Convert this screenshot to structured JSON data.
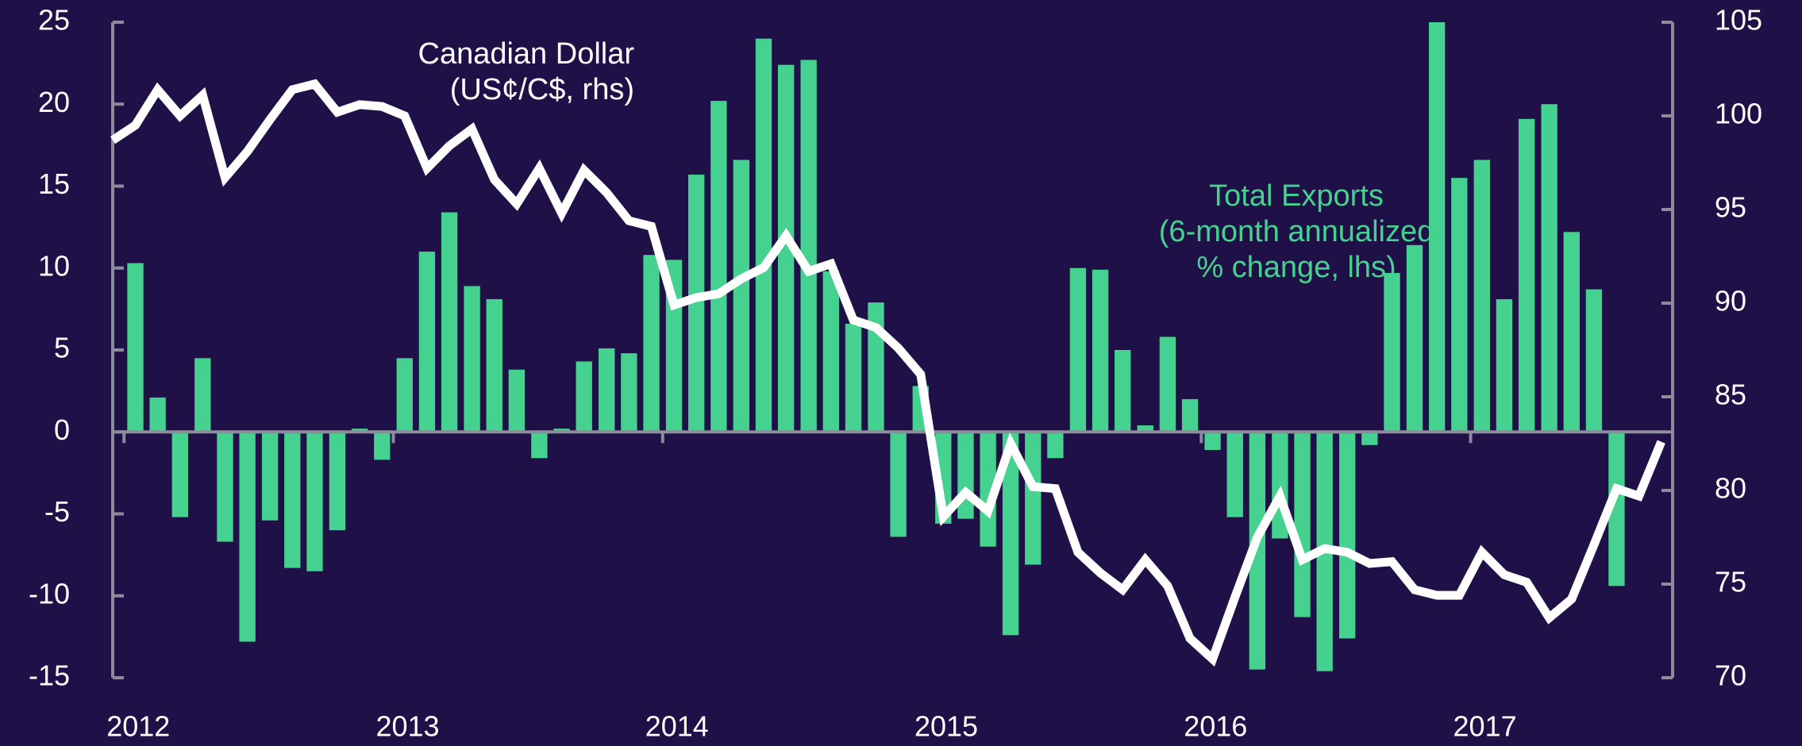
{
  "chart_data": {
    "type": "bar-line",
    "annotations": [
      [
        "Canadian Dollar",
        "(US¢/C$, rhs)"
      ],
      [
        "Total Exports",
        "(6-month annualized",
        "% change, lhs)"
      ]
    ],
    "x": [
      2011.958,
      2012.042,
      2012.125,
      2012.208,
      2012.292,
      2012.375,
      2012.458,
      2012.542,
      2012.625,
      2012.708,
      2012.792,
      2012.875,
      2012.958,
      2013.042,
      2013.125,
      2013.208,
      2013.292,
      2013.375,
      2013.458,
      2013.542,
      2013.625,
      2013.708,
      2013.792,
      2013.875,
      2013.958,
      2014.042,
      2014.125,
      2014.208,
      2014.292,
      2014.375,
      2014.458,
      2014.542,
      2014.625,
      2014.708,
      2014.792,
      2014.875,
      2014.958,
      2015.042,
      2015.125,
      2015.208,
      2015.292,
      2015.375,
      2015.458,
      2015.542,
      2015.625,
      2015.708,
      2015.792,
      2015.875,
      2015.958,
      2016.042,
      2016.125,
      2016.208,
      2016.292,
      2016.375,
      2016.458,
      2016.542,
      2016.625,
      2016.708,
      2016.792,
      2016.875,
      2016.958,
      2017.042,
      2017.125,
      2017.208,
      2017.292,
      2017.375,
      2017.458,
      2017.542,
      2017.625,
      2017.708
    ],
    "series": [
      {
        "name": "Total Exports",
        "type": "bar",
        "color": "#45d18f",
        "axis": "y",
        "values": [
          null,
          10.3,
          2.1,
          -5.2,
          4.5,
          -6.7,
          -12.8,
          -5.4,
          -8.3,
          -8.5,
          -6.0,
          0.2,
          -1.7,
          4.5,
          11.0,
          13.4,
          8.9,
          8.1,
          3.8,
          -1.6,
          0.2,
          4.3,
          5.1,
          4.8,
          10.8,
          10.5,
          15.7,
          20.2,
          16.6,
          24.0,
          22.4,
          22.7,
          9.8,
          6.6,
          7.9,
          -6.4,
          2.8,
          -5.6,
          -5.3,
          -7.0,
          -12.4,
          -8.1,
          -1.6,
          10.0,
          9.9,
          5.0,
          0.4,
          5.8,
          2.0,
          -1.1,
          -5.2,
          -14.5,
          -6.5,
          -11.3,
          -14.6,
          -12.6,
          -0.8,
          9.7,
          11.4,
          25.0,
          15.5,
          16.6,
          8.1,
          19.1,
          20.0,
          12.2,
          8.7,
          -9.4,
          null,
          null
        ]
      },
      {
        "name": "Canadian Dollar",
        "type": "line",
        "color": "#ffffff",
        "axis": "y2",
        "values": [
          98.7,
          99.5,
          101.4,
          100.0,
          101.1,
          96.7,
          98.1,
          99.8,
          101.4,
          101.7,
          100.2,
          100.6,
          100.5,
          100.0,
          97.2,
          98.4,
          99.3,
          96.6,
          95.3,
          97.2,
          94.8,
          97.1,
          95.9,
          94.4,
          94.1,
          89.9,
          90.3,
          90.5,
          91.3,
          91.9,
          93.6,
          91.7,
          92.1,
          89.1,
          88.7,
          87.6,
          86.2,
          78.6,
          79.9,
          78.9,
          82.5,
          80.2,
          80.1,
          76.7,
          75.6,
          74.7,
          76.3,
          74.9,
          72.1,
          71.0,
          74.3,
          77.5,
          79.7,
          76.3,
          76.9,
          76.7,
          76.1,
          76.2,
          74.7,
          74.4,
          74.4,
          76.7,
          75.5,
          75.1,
          73.2,
          74.2,
          77.1,
          80.1,
          79.7,
          82.6
        ]
      }
    ],
    "xlim": [
      2011.958,
      2017.75
    ],
    "xticks": [
      2012,
      2013,
      2014,
      2015,
      2016,
      2017
    ],
    "ylim": [
      -15,
      25
    ],
    "yticks": [
      -15,
      -10,
      -5,
      0,
      5,
      10,
      15,
      20,
      25
    ],
    "y2lim": [
      70,
      105
    ],
    "y2ticks": [
      70,
      75,
      80,
      85,
      90,
      95,
      100,
      105
    ]
  }
}
